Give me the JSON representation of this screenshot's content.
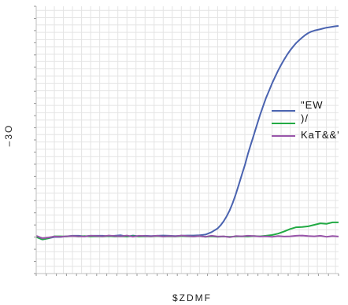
{
  "chart_data": {
    "type": "line",
    "xlabel": "$ZDMF",
    "ylabel": "–3O",
    "grid": true,
    "legend_position": "right",
    "xlim": [
      0,
      100
    ],
    "ylim": [
      0,
      100
    ],
    "x_grid_step": 3,
    "y_grid_step": 3,
    "series": [
      {
        "name": "\"EW",
        "color": "#4a63b0",
        "x": [
          0,
          2,
          4,
          6,
          8,
          10,
          12,
          14,
          16,
          18,
          20,
          22,
          24,
          26,
          28,
          30,
          32,
          34,
          36,
          38,
          40,
          42,
          44,
          46,
          48,
          50,
          52,
          54,
          56,
          58,
          60,
          61,
          62,
          63,
          64,
          65,
          66,
          67,
          68,
          69,
          70,
          71,
          72,
          73,
          74,
          75,
          76,
          77,
          78,
          79,
          80,
          81,
          82,
          83,
          84,
          85,
          86,
          87,
          88,
          89,
          90,
          91,
          92,
          93,
          94,
          95,
          96,
          97,
          98,
          99,
          100
        ],
        "y": [
          15,
          14,
          14.5,
          15,
          15,
          15.3,
          15.5,
          15.5,
          15.3,
          15.5,
          15.5,
          15.5,
          15.3,
          15.5,
          15.7,
          15.2,
          15.6,
          15.3,
          15.5,
          15.4,
          15.5,
          15.6,
          15.5,
          15.4,
          15.5,
          15.6,
          15.6,
          15.7,
          16,
          17,
          18.5,
          19.8,
          21.5,
          23.5,
          26,
          29,
          32.5,
          36.5,
          40.5,
          44.5,
          49,
          53,
          57,
          61,
          65,
          68.5,
          72,
          75,
          78,
          80.7,
          83.3,
          85.6,
          87.8,
          89.8,
          91.6,
          93.2,
          94.6,
          95.8,
          96.9,
          97.9,
          98.7,
          99.3,
          99.7,
          100,
          100.3,
          100.6,
          100.9,
          101.1,
          101.3,
          101.5,
          101.6
        ]
      },
      {
        "name": ")/",
        "color": "#22aa44",
        "x": [
          0,
          2,
          4,
          6,
          8,
          10,
          12,
          14,
          16,
          18,
          20,
          22,
          24,
          26,
          28,
          30,
          32,
          34,
          36,
          38,
          40,
          42,
          44,
          46,
          48,
          50,
          52,
          54,
          56,
          58,
          60,
          62,
          64,
          66,
          68,
          70,
          72,
          74,
          76,
          78,
          80,
          82,
          84,
          86,
          88,
          90,
          92,
          94,
          96,
          98,
          100
        ],
        "y": [
          15,
          14,
          14.5,
          15.3,
          15.3,
          15.2,
          15.4,
          15.2,
          15.4,
          15.2,
          15.3,
          15.2,
          15.4,
          15.2,
          15.3,
          15.2,
          15.4,
          15.2,
          15.3,
          15.2,
          15.4,
          15.2,
          15.3,
          15.2,
          15.4,
          15.3,
          15.2,
          15.4,
          15.1,
          15.3,
          15.1,
          15.2,
          15.1,
          15.2,
          15.3,
          15.2,
          15.4,
          15.3,
          15.5,
          15.8,
          16.4,
          17.3,
          18.3,
          19,
          19.1,
          19.4,
          20,
          20.6,
          20.4,
          21,
          21
        ]
      },
      {
        "name": "KaT&&'",
        "color": "#9955aa",
        "x": [
          0,
          2,
          4,
          6,
          8,
          10,
          12,
          14,
          16,
          18,
          20,
          22,
          24,
          26,
          28,
          30,
          32,
          34,
          36,
          38,
          40,
          42,
          44,
          46,
          48,
          50,
          52,
          54,
          56,
          58,
          60,
          62,
          64,
          66,
          68,
          70,
          72,
          74,
          76,
          78,
          80,
          82,
          84,
          86,
          88,
          90,
          92,
          94,
          96,
          98,
          100
        ],
        "y": [
          15.5,
          14.5,
          14.8,
          15.2,
          15.1,
          15.3,
          15.4,
          15.3,
          15.2,
          15.5,
          15.4,
          15.3,
          15.6,
          15.4,
          15.3,
          15.6,
          15.1,
          15.5,
          15.4,
          15.3,
          15.5,
          15.2,
          15.4,
          15.3,
          15.6,
          15.4,
          15.2,
          15.4,
          15.1,
          15.5,
          15.2,
          15.3,
          14.9,
          15.4,
          15.3,
          15.5,
          15.4,
          15.2,
          15.3,
          15.1,
          15.4,
          15.2,
          15.3,
          15.5,
          15.6,
          15.4,
          15.3,
          15.5,
          15.1,
          15.4,
          15.2
        ]
      }
    ]
  }
}
